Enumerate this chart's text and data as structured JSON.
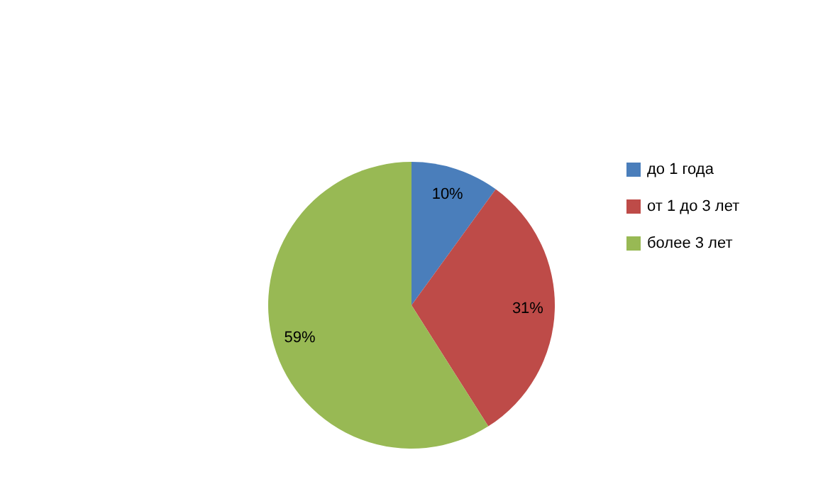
{
  "chart_data": {
    "type": "pie",
    "categories": [
      "до 1 года",
      "от 1 до 3 лет",
      "более 3 лет"
    ],
    "values": [
      10,
      31,
      59
    ],
    "colors": [
      "#4a7ebb",
      "#be4b48",
      "#98b954"
    ],
    "value_labels": [
      "10%",
      "31%",
      "59%"
    ],
    "legend": "right"
  }
}
